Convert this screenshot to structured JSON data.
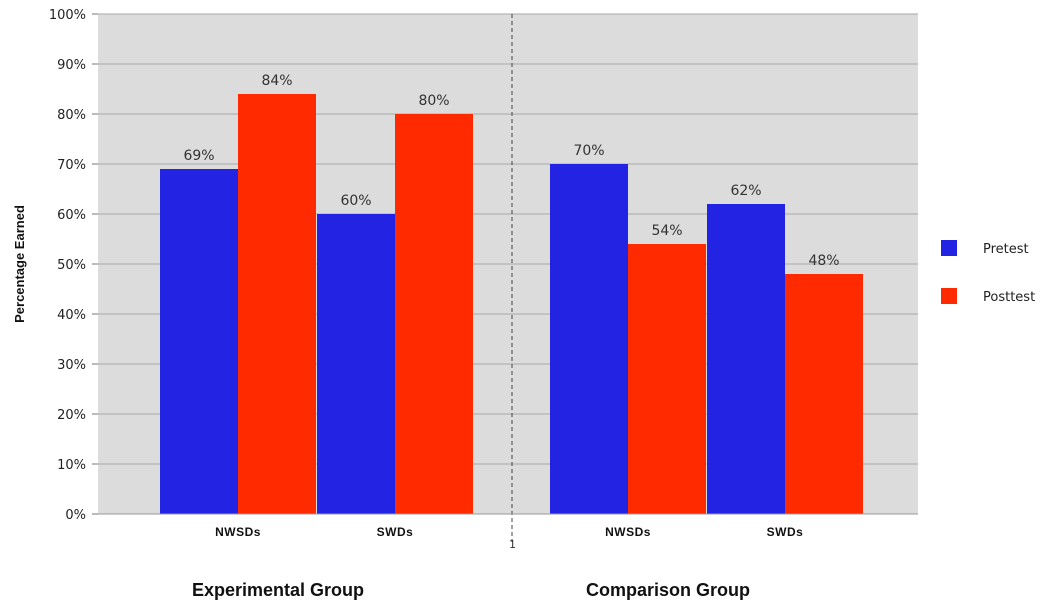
{
  "chart_data": {
    "type": "bar",
    "ylabel": "Percentage Earned",
    "ylim": [
      0,
      100
    ],
    "yticks": [
      "0%",
      "10%",
      "20%",
      "30%",
      "40%",
      "50%",
      "60%",
      "70%",
      "80%",
      "90%",
      "100%"
    ],
    "grid": true,
    "legend_position": "right",
    "separator_label": "1",
    "groups": [
      {
        "label": "Experimental Group",
        "categories": [
          "NWSDs",
          "SWDs"
        ],
        "series": [
          {
            "name": "Pretest",
            "values": [
              69,
              60
            ],
            "labels": [
              "69%",
              "60%"
            ]
          },
          {
            "name": "Posttest",
            "values": [
              84,
              80
            ],
            "labels": [
              "84%",
              "80%"
            ]
          }
        ]
      },
      {
        "label": "Comparison Group",
        "categories": [
          "NWSDs",
          "SWDs"
        ],
        "series": [
          {
            "name": "Pretest",
            "values": [
              70,
              62
            ],
            "labels": [
              "70%",
              "62%"
            ]
          },
          {
            "name": "Posttest",
            "values": [
              54,
              48
            ],
            "labels": [
              "54%",
              "48%"
            ]
          }
        ]
      }
    ],
    "legend": [
      {
        "name": "Pretest",
        "color": "#2323e3"
      },
      {
        "name": "Posttest",
        "color": "#ff2a00"
      }
    ]
  }
}
